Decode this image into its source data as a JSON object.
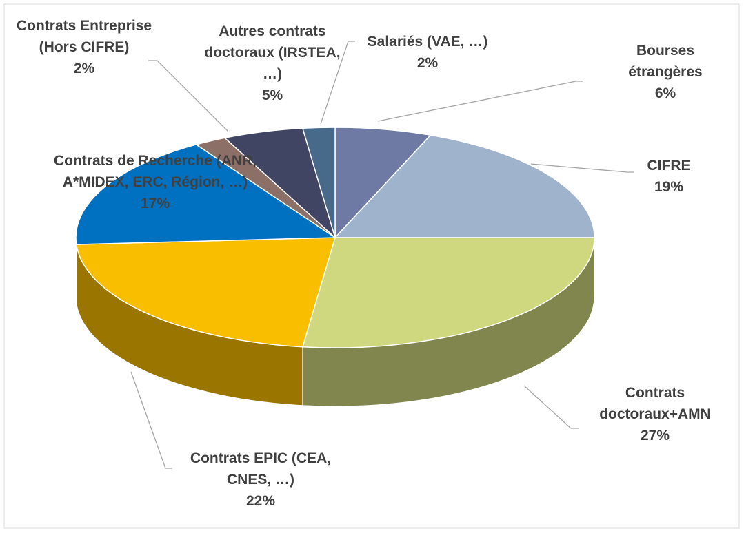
{
  "chart_data": {
    "type": "pie",
    "three_d": true,
    "categories": [
      "Bourses étrangères",
      "CIFRE",
      "Contrats doctoraux+AMN",
      "Contrats EPIC (CEA, CNES, …)",
      "Contrats de Recherche (ANR, A*MIDEX, ERC, Région, …)",
      "Contrats Entreprise (Hors CIFRE)",
      "Autres contrats doctoraux (IRSTEA, …)",
      "Salariés (VAE, …)"
    ],
    "values": [
      6,
      19,
      27,
      22,
      17,
      2,
      5,
      2
    ],
    "value_labels": [
      "6%",
      "19%",
      "27%",
      "22%",
      "17%",
      "2%",
      "5%",
      "2%"
    ],
    "colors": [
      "#6e7aa3",
      "#9fb4cc",
      "#d0d87f",
      "#f9be00",
      "#0070c0",
      "#8c7068",
      "#3f4563",
      "#47698a"
    ]
  }
}
